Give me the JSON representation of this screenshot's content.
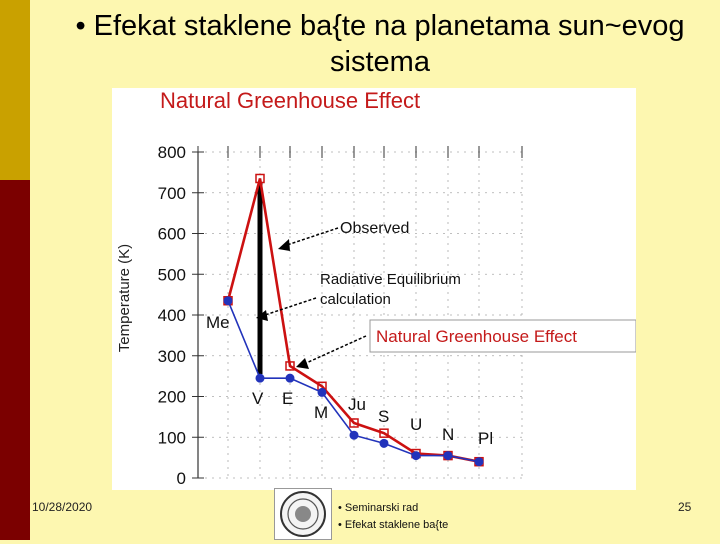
{
  "slide": {
    "title_line1": "• Efekat staklene ba{te na planetama sun~evog",
    "title_line2": "sistema"
  },
  "footer": {
    "date": "10/28/2020",
    "line1": "• Seminarski rad",
    "line2": "• Efekat staklene ba{te",
    "page": "25"
  },
  "chart_data": {
    "type": "line",
    "title": "Natural Greenhouse Effect",
    "ylabel": "Temperature (K)",
    "xlabel": "",
    "ylim": [
      0,
      800
    ],
    "yticks": [
      "0",
      "100",
      "200",
      "300",
      "400",
      "500",
      "600",
      "700",
      "800"
    ],
    "categories": [
      "Me",
      "V",
      "E",
      "M",
      "Ju",
      "S",
      "U",
      "N",
      "Pl"
    ],
    "series": [
      {
        "name": "Observed",
        "color": "#cc1111",
        "values": [
          435,
          735,
          275,
          225,
          135,
          110,
          60,
          55,
          40
        ]
      },
      {
        "name": "Radiative Equilibrium calculation",
        "color": "#2233bb",
        "values": [
          435,
          245,
          245,
          210,
          105,
          85,
          55,
          55,
          40
        ]
      }
    ],
    "annotations": {
      "observed": "Observed",
      "rad_eq_line1": "Radiative Equilibrium",
      "rad_eq_line2": "calculation",
      "box_label": "Natural Greenhouse Effect"
    },
    "grid": true
  }
}
